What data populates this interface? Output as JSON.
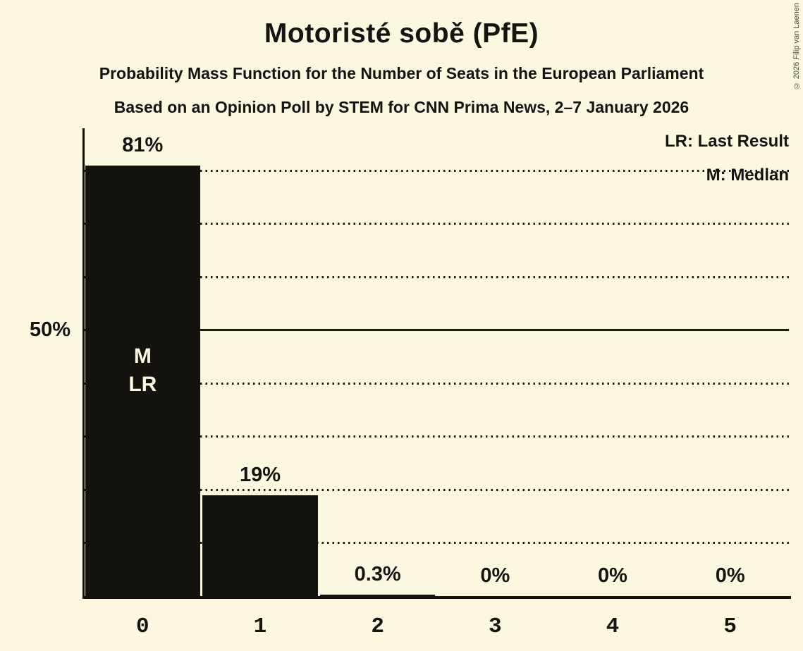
{
  "title": "Motoristé sobě (PfE)",
  "subtitle1": "Probability Mass Function for the Number of Seats in the European Parliament",
  "subtitle2": "Based on an Opinion Poll by STEM for CNN Prima News, 2–7 January 2026",
  "copyright": "© 2026 Filip van Laenen",
  "legend": {
    "lr": "LR: Last Result",
    "m": "M: Median"
  },
  "y_axis": {
    "label_50": "50%"
  },
  "colors": {
    "background": "#FCF7E0",
    "bar": "#14120C",
    "ink": "#161410"
  },
  "chart_data": {
    "type": "bar",
    "title": "Motoristé sobě (PfE)",
    "categories": [
      "0",
      "1",
      "2",
      "3",
      "4",
      "5"
    ],
    "values": [
      81,
      19,
      0.3,
      0,
      0,
      0
    ],
    "value_labels": [
      "81%",
      "19%",
      "0.3%",
      "0%",
      "0%",
      "0%"
    ],
    "annotations": [
      {
        "category": "0",
        "lines": [
          "M",
          "LR"
        ]
      }
    ],
    "median_seats": "0",
    "last_result_seats": "0",
    "xlabel": "",
    "ylabel": "",
    "y_tick_labels": [
      {
        "pct": 50,
        "label": "50%"
      }
    ],
    "ylim": [
      0,
      88
    ],
    "gridlines_pct": [
      10,
      20,
      30,
      40,
      60,
      70,
      80
    ],
    "solid_line_pct": 50,
    "grid": "horizontal dotted, solid at 50%",
    "legend_entries": [
      "LR: Last Result",
      "M: Median"
    ],
    "legend_position": "top-right"
  }
}
